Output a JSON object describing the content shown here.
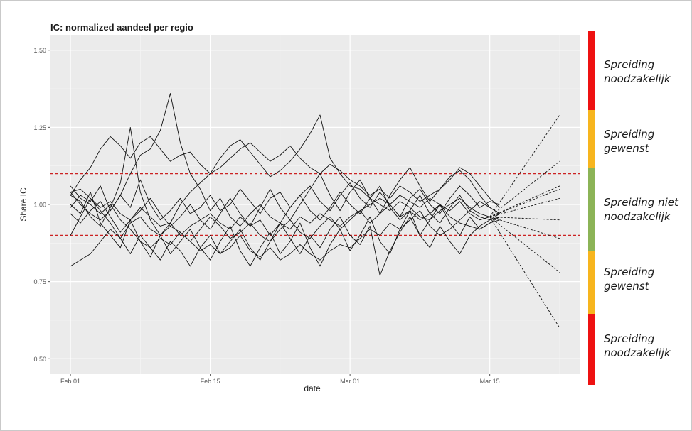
{
  "chart_data": {
    "type": "line",
    "title": "IC: normalized aandeel per regio",
    "xlabel": "date",
    "ylabel": "Share IC",
    "x_ticks": [
      "Feb 01",
      "Feb 15",
      "Mar 01",
      "Mar 15"
    ],
    "y_ticks": [
      "0.50",
      "0.75",
      "1.00",
      "1.25",
      "1.50"
    ],
    "ylim": [
      0.45,
      1.55
    ],
    "xlim_days": [
      -2,
      51
    ],
    "grid": true,
    "background": "#ebebeb",
    "reference_lines": [
      {
        "y": 1.1,
        "style": "dashed",
        "color": "#cc2222"
      },
      {
        "y": 0.9,
        "style": "dashed",
        "color": "#cc2222"
      }
    ],
    "series": [
      {
        "values": [
          1.04,
          1.05,
          1.02,
          0.99,
          1.01,
          0.97,
          0.95,
          0.99,
          0.96,
          0.93,
          0.94,
          0.9,
          0.93,
          0.95,
          0.97,
          0.94,
          0.92,
          0.96,
          0.93,
          0.95,
          0.9,
          0.94,
          0.92,
          0.96,
          0.94,
          0.97,
          0.95,
          0.93,
          0.96,
          0.98,
          1.0,
          1.02,
          1.0,
          1.03,
          1.01,
          0.99,
          1.02,
          1.0,
          0.98,
          1.01,
          0.97,
          0.95,
          0.96,
          0.96
        ]
      },
      {
        "values": [
          1.03,
          1.08,
          1.12,
          1.18,
          1.22,
          1.19,
          1.15,
          1.2,
          1.22,
          1.18,
          1.14,
          1.16,
          1.17,
          1.13,
          1.1,
          1.12,
          1.15,
          1.18,
          1.2,
          1.17,
          1.14,
          1.16,
          1.19,
          1.15,
          1.12,
          1.1,
          1.13,
          1.11,
          1.08,
          1.06,
          1.03,
          1.05,
          1.02,
          1.06,
          1.04,
          1.01,
          1.03,
          1.05,
          1.08,
          1.12,
          1.1,
          1.06,
          1.02,
          0.99
        ]
      },
      {
        "values": [
          1.06,
          1.02,
          1.0,
          0.97,
          1.0,
          0.95,
          0.92,
          0.88,
          0.86,
          0.89,
          0.87,
          0.91,
          0.88,
          0.85,
          0.87,
          0.84,
          0.86,
          0.9,
          0.85,
          0.83,
          0.86,
          0.82,
          0.84,
          0.87,
          0.84,
          0.82,
          0.85,
          0.87,
          0.86,
          0.89,
          0.92,
          0.9,
          0.94,
          0.92,
          0.95,
          0.98,
          0.93,
          0.9,
          0.92,
          0.95,
          0.98,
          1.01,
          0.99,
          0.97
        ]
      },
      {
        "values": [
          0.99,
          1.03,
          1.01,
          1.06,
          0.98,
          1.03,
          0.99,
          1.08,
          1.0,
          0.95,
          0.98,
          1.02,
          0.97,
          0.99,
          1.03,
          0.98,
          1.0,
          1.05,
          1.01,
          0.97,
          1.02,
          1.04,
          0.99,
          1.03,
          1.06,
          1.01,
          0.98,
          1.03,
          1.07,
          1.02,
          0.99,
          1.04,
          1.0,
          0.96,
          1.02,
          1.05,
          1.0,
          0.97,
          1.02,
          1.06,
          1.03,
          0.99,
          1.01,
          1.0
        ]
      },
      {
        "values": [
          0.8,
          0.82,
          0.84,
          0.88,
          0.92,
          0.89,
          0.94,
          0.96,
          0.92,
          0.9,
          0.93,
          0.91,
          0.88,
          0.92,
          0.96,
          0.93,
          0.89,
          0.91,
          0.94,
          0.9,
          0.88,
          0.92,
          0.95,
          0.91,
          0.89,
          0.93,
          0.96,
          0.92,
          0.95,
          0.98,
          0.94,
          0.97,
          1.0,
          0.96,
          0.98,
          0.95,
          0.97,
          1.0,
          0.96,
          0.94,
          0.93,
          0.92,
          0.94,
          0.95
        ]
      },
      {
        "values": [
          1.04,
          1.0,
          0.97,
          0.95,
          0.98,
          1.03,
          1.1,
          1.16,
          1.18,
          1.24,
          1.36,
          1.2,
          1.1,
          1.05,
          0.98,
          1.02,
          0.96,
          0.93,
          0.97,
          1.0,
          0.96,
          0.94,
          0.99,
          1.03,
          0.98,
          0.95,
          0.99,
          1.04,
          1.0,
          0.97,
          1.02,
          1.06,
          0.99,
          0.95,
          0.98,
          1.03,
          0.97,
          0.94,
          0.99,
          1.03,
          0.98,
          0.96,
          0.95,
          0.96
        ]
      },
      {
        "values": [
          1.03,
          1.01,
          0.96,
          0.93,
          0.99,
          1.07,
          1.25,
          1.04,
          0.95,
          0.9,
          0.94,
          1.0,
          1.04,
          1.07,
          1.1,
          1.15,
          1.19,
          1.21,
          1.17,
          1.13,
          1.09,
          1.11,
          1.14,
          1.18,
          1.23,
          1.29,
          1.15,
          1.1,
          1.06,
          1.05,
          1.02,
          1.0,
          0.98,
          1.01,
          0.99,
          0.96,
          0.95,
          0.98,
          1.0,
          1.02,
          0.99,
          0.97,
          0.96,
          0.96
        ]
      },
      {
        "values": [
          1.0,
          0.97,
          1.04,
          0.94,
          0.9,
          0.86,
          0.95,
          0.88,
          0.83,
          0.9,
          0.84,
          0.88,
          0.92,
          0.86,
          0.82,
          0.88,
          0.93,
          0.85,
          0.8,
          0.86,
          0.91,
          0.84,
          0.88,
          0.94,
          0.86,
          0.8,
          0.87,
          0.92,
          0.85,
          0.9,
          0.96,
          0.88,
          0.84,
          0.92,
          0.98,
          0.9,
          0.86,
          0.93,
          0.88,
          0.84,
          0.9,
          0.93,
          0.95,
          0.97
        ]
      },
      {
        "values": [
          0.9,
          0.96,
          1.02,
          0.98,
          0.94,
          0.89,
          0.84,
          0.9,
          0.86,
          0.82,
          0.88,
          0.85,
          0.8,
          0.86,
          0.9,
          0.84,
          0.88,
          0.92,
          0.86,
          0.82,
          0.88,
          0.94,
          0.89,
          0.84,
          0.9,
          0.86,
          0.92,
          0.96,
          0.9,
          0.87,
          0.93,
          0.77,
          0.85,
          0.91,
          0.96,
          0.9,
          0.95,
          1.0,
          0.94,
          0.9,
          0.96,
          0.92,
          0.94,
          0.96
        ]
      },
      {
        "values": [
          0.97,
          0.94,
          0.98,
          1.01,
          0.96,
          0.91,
          0.95,
          0.98,
          1.02,
          0.97,
          0.93,
          0.96,
          1.0,
          0.95,
          0.92,
          0.97,
          1.02,
          0.97,
          0.93,
          0.99,
          1.05,
          0.99,
          0.95,
          1.0,
          1.05,
          1.1,
          1.03,
          0.98,
          1.04,
          1.08,
          1.02,
          0.97,
          1.03,
          1.08,
          1.12,
          1.06,
          1.01,
          1.05,
          1.09,
          1.11,
          1.08,
          1.03,
          0.99,
          0.97
        ]
      }
    ],
    "forecast_endpoints": [
      1.29,
      1.14,
      1.06,
      1.05,
      1.02,
      0.95,
      0.89,
      0.78,
      0.6
    ]
  },
  "zones": [
    {
      "label": "Spreiding\nnoodzakelijk",
      "color": "#ee1111"
    },
    {
      "label": "Spreiding\ngewenst",
      "color": "#f7b51e"
    },
    {
      "label": "Spreiding niet\nnoodzakelijk",
      "color": "#8cb457"
    },
    {
      "label": "Spreiding\ngewenst",
      "color": "#f7b51e"
    },
    {
      "label": "Spreiding\nnoodzakelijk",
      "color": "#ee1111"
    }
  ]
}
